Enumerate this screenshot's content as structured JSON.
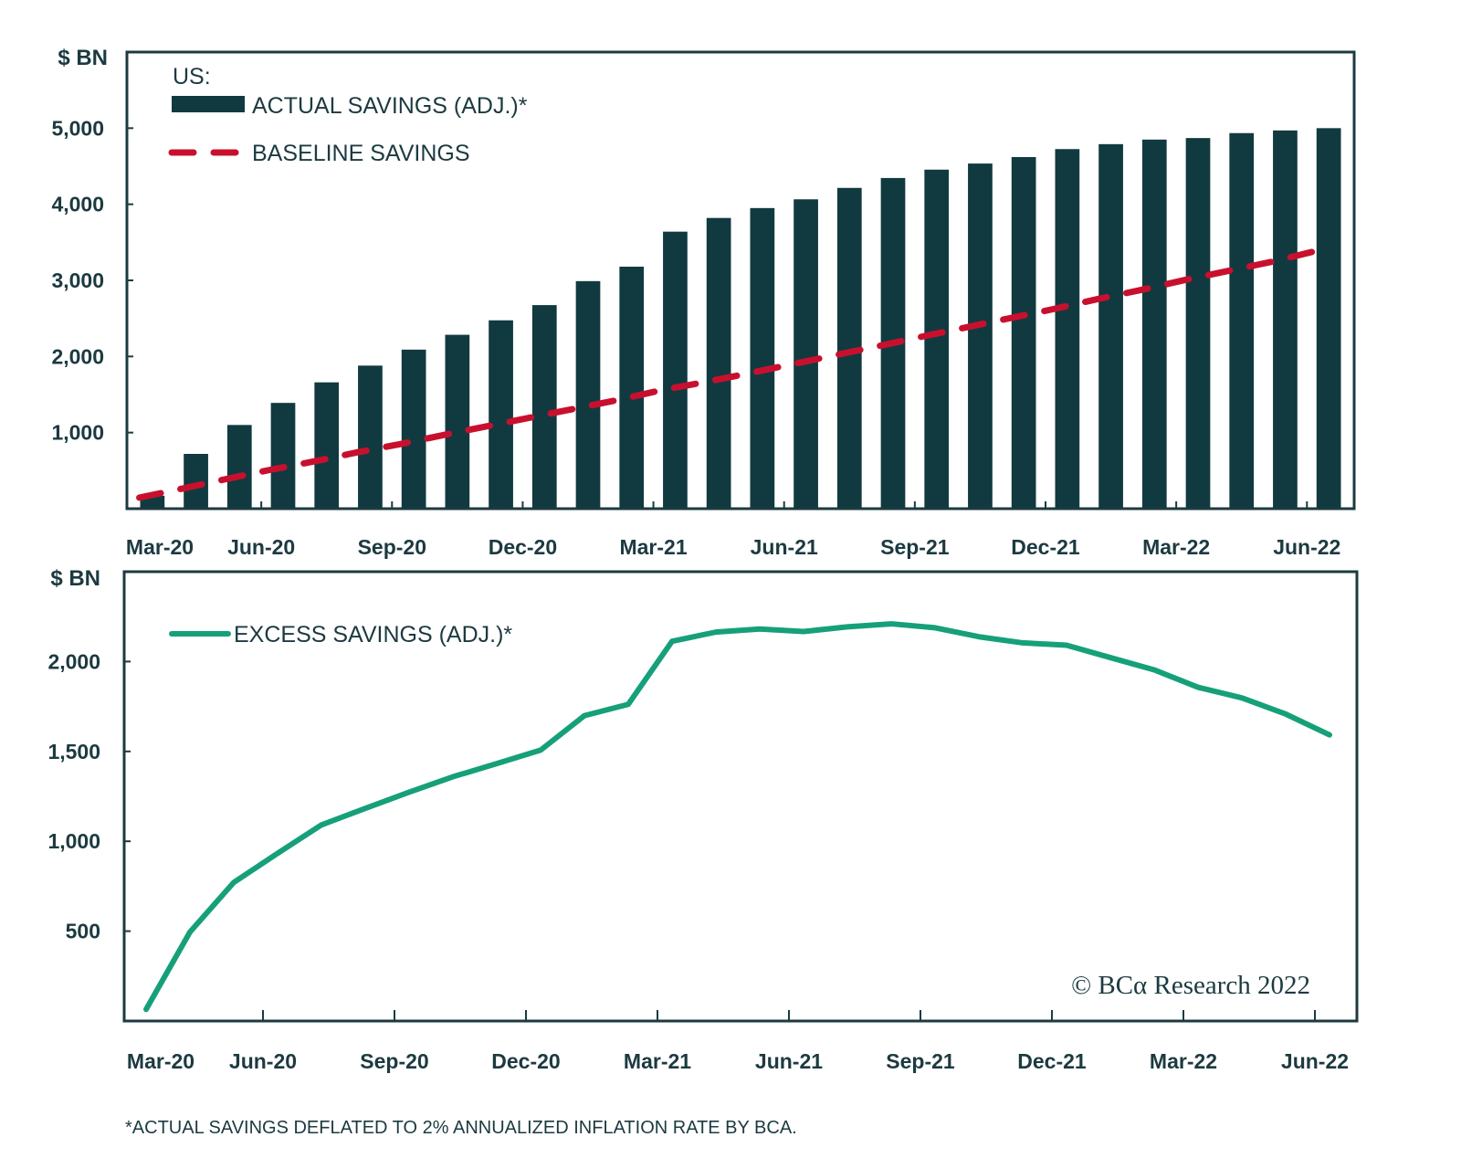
{
  "colors": {
    "bar": "#113a40",
    "baseline": "#c8102e",
    "excess": "#16a07a",
    "axis": "#1c3a40"
  },
  "chart_data": [
    {
      "type": "bar",
      "title": "US:",
      "ylabel": "$ BN",
      "xlabel": "",
      "ylim": [
        0,
        6000
      ],
      "y_ticks": [
        1000,
        2000,
        3000,
        4000,
        5000
      ],
      "y_tick_labels": [
        "1,000",
        "2,000",
        "3,000",
        "4,000",
        "5,000"
      ],
      "x_tick_labels": [
        "Mar-20",
        "Jun-20",
        "Sep-20",
        "Dec-20",
        "Mar-21",
        "Jun-21",
        "Sep-21",
        "Dec-21",
        "Mar-22",
        "Jun-22"
      ],
      "grid": false,
      "legend_position": "top-left",
      "categories": [
        "Mar-20",
        "Apr-20",
        "May-20",
        "Jun-20",
        "Jul-20",
        "Aug-20",
        "Sep-20",
        "Oct-20",
        "Nov-20",
        "Dec-20",
        "Jan-21",
        "Feb-21",
        "Mar-21",
        "Apr-21",
        "May-21",
        "Jun-21",
        "Jul-21",
        "Aug-21",
        "Sep-21",
        "Oct-21",
        "Nov-21",
        "Dec-21",
        "Jan-22",
        "Feb-22",
        "Mar-22",
        "Apr-22",
        "May-22",
        "Jun-22"
      ],
      "series": [
        {
          "name": "ACTUAL SAVINGS (ADJ.)*",
          "kind": "bar",
          "values": [
            170,
            720,
            1100,
            1390,
            1660,
            1880,
            2090,
            2285,
            2475,
            2675,
            2990,
            3180,
            3640,
            3820,
            3950,
            4065,
            4215,
            4345,
            4455,
            4535,
            4620,
            4725,
            4790,
            4850,
            4870,
            4935,
            4970,
            5000
          ]
        },
        {
          "name": "BASELINE SAVINGS",
          "kind": "dashed-line",
          "values": [
            145,
            265,
            390,
            510,
            620,
            740,
            850,
            970,
            1085,
            1200,
            1315,
            1430,
            1560,
            1665,
            1780,
            1900,
            2020,
            2140,
            2265,
            2385,
            2505,
            2625,
            2755,
            2875,
            3005,
            3125,
            3245,
            3385
          ]
        }
      ]
    },
    {
      "type": "line",
      "ylabel": "$ BN",
      "xlabel": "",
      "ylim": [
        0,
        2500
      ],
      "y_ticks": [
        500,
        1000,
        1500,
        2000
      ],
      "y_tick_labels": [
        "500",
        "1,000",
        "1,500",
        "2,000"
      ],
      "x_tick_labels": [
        "Mar-20",
        "Jun-20",
        "Sep-20",
        "Dec-20",
        "Mar-21",
        "Jun-21",
        "Sep-21",
        "Dec-21",
        "Mar-22",
        "Jun-22"
      ],
      "grid": false,
      "legend_position": "top-left",
      "categories": [
        "Mar-20",
        "Apr-20",
        "May-20",
        "Jun-20",
        "Jul-20",
        "Aug-20",
        "Sep-20",
        "Oct-20",
        "Nov-20",
        "Dec-20",
        "Jan-21",
        "Feb-21",
        "Mar-21",
        "Apr-21",
        "May-21",
        "Jun-21",
        "Jul-21",
        "Aug-21",
        "Sep-21",
        "Oct-21",
        "Nov-21",
        "Dec-21",
        "Jan-22",
        "Feb-22",
        "Mar-22",
        "Apr-22",
        "May-22",
        "Jun-22"
      ],
      "series": [
        {
          "name": "EXCESS SAVINGS (ADJ.)*",
          "values": [
            65,
            495,
            771,
            933,
            1091,
            1183,
            1273,
            1359,
            1432,
            1507,
            1699,
            1762,
            2113,
            2164,
            2181,
            2167,
            2193,
            2210,
            2188,
            2138,
            2104,
            2091,
            2022,
            1954,
            1857,
            1798,
            1708,
            1592
          ]
        }
      ],
      "annotation": "© BCα Research 2022"
    }
  ],
  "footnote": "*ACTUAL SAVINGS DEFLATED TO 2% ANNUALIZED INFLATION RATE BY BCA."
}
